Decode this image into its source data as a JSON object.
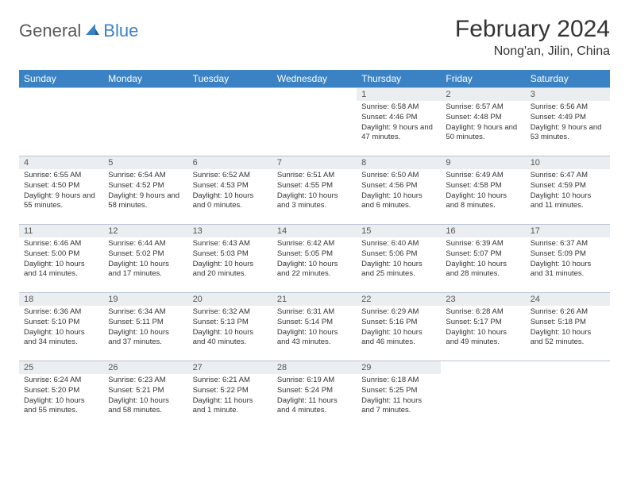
{
  "logo": {
    "text_general": "General",
    "text_blue": "Blue",
    "icon_color": "#3b82c4"
  },
  "title": "February 2024",
  "location": "Nong'an, Jilin, China",
  "colors": {
    "header_bg": "#3b82c4",
    "header_text": "#ffffff",
    "daynum_bg": "#ebeef1",
    "border": "#b8c4d0",
    "text": "#333333"
  },
  "day_headers": [
    "Sunday",
    "Monday",
    "Tuesday",
    "Wednesday",
    "Thursday",
    "Friday",
    "Saturday"
  ],
  "weeks": [
    [
      {
        "n": "",
        "sr": "",
        "ss": "",
        "dl": ""
      },
      {
        "n": "",
        "sr": "",
        "ss": "",
        "dl": ""
      },
      {
        "n": "",
        "sr": "",
        "ss": "",
        "dl": ""
      },
      {
        "n": "",
        "sr": "",
        "ss": "",
        "dl": ""
      },
      {
        "n": "1",
        "sr": "Sunrise: 6:58 AM",
        "ss": "Sunset: 4:46 PM",
        "dl": "Daylight: 9 hours and 47 minutes."
      },
      {
        "n": "2",
        "sr": "Sunrise: 6:57 AM",
        "ss": "Sunset: 4:48 PM",
        "dl": "Daylight: 9 hours and 50 minutes."
      },
      {
        "n": "3",
        "sr": "Sunrise: 6:56 AM",
        "ss": "Sunset: 4:49 PM",
        "dl": "Daylight: 9 hours and 53 minutes."
      }
    ],
    [
      {
        "n": "4",
        "sr": "Sunrise: 6:55 AM",
        "ss": "Sunset: 4:50 PM",
        "dl": "Daylight: 9 hours and 55 minutes."
      },
      {
        "n": "5",
        "sr": "Sunrise: 6:54 AM",
        "ss": "Sunset: 4:52 PM",
        "dl": "Daylight: 9 hours and 58 minutes."
      },
      {
        "n": "6",
        "sr": "Sunrise: 6:52 AM",
        "ss": "Sunset: 4:53 PM",
        "dl": "Daylight: 10 hours and 0 minutes."
      },
      {
        "n": "7",
        "sr": "Sunrise: 6:51 AM",
        "ss": "Sunset: 4:55 PM",
        "dl": "Daylight: 10 hours and 3 minutes."
      },
      {
        "n": "8",
        "sr": "Sunrise: 6:50 AM",
        "ss": "Sunset: 4:56 PM",
        "dl": "Daylight: 10 hours and 6 minutes."
      },
      {
        "n": "9",
        "sr": "Sunrise: 6:49 AM",
        "ss": "Sunset: 4:58 PM",
        "dl": "Daylight: 10 hours and 8 minutes."
      },
      {
        "n": "10",
        "sr": "Sunrise: 6:47 AM",
        "ss": "Sunset: 4:59 PM",
        "dl": "Daylight: 10 hours and 11 minutes."
      }
    ],
    [
      {
        "n": "11",
        "sr": "Sunrise: 6:46 AM",
        "ss": "Sunset: 5:00 PM",
        "dl": "Daylight: 10 hours and 14 minutes."
      },
      {
        "n": "12",
        "sr": "Sunrise: 6:44 AM",
        "ss": "Sunset: 5:02 PM",
        "dl": "Daylight: 10 hours and 17 minutes."
      },
      {
        "n": "13",
        "sr": "Sunrise: 6:43 AM",
        "ss": "Sunset: 5:03 PM",
        "dl": "Daylight: 10 hours and 20 minutes."
      },
      {
        "n": "14",
        "sr": "Sunrise: 6:42 AM",
        "ss": "Sunset: 5:05 PM",
        "dl": "Daylight: 10 hours and 22 minutes."
      },
      {
        "n": "15",
        "sr": "Sunrise: 6:40 AM",
        "ss": "Sunset: 5:06 PM",
        "dl": "Daylight: 10 hours and 25 minutes."
      },
      {
        "n": "16",
        "sr": "Sunrise: 6:39 AM",
        "ss": "Sunset: 5:07 PM",
        "dl": "Daylight: 10 hours and 28 minutes."
      },
      {
        "n": "17",
        "sr": "Sunrise: 6:37 AM",
        "ss": "Sunset: 5:09 PM",
        "dl": "Daylight: 10 hours and 31 minutes."
      }
    ],
    [
      {
        "n": "18",
        "sr": "Sunrise: 6:36 AM",
        "ss": "Sunset: 5:10 PM",
        "dl": "Daylight: 10 hours and 34 minutes."
      },
      {
        "n": "19",
        "sr": "Sunrise: 6:34 AM",
        "ss": "Sunset: 5:11 PM",
        "dl": "Daylight: 10 hours and 37 minutes."
      },
      {
        "n": "20",
        "sr": "Sunrise: 6:32 AM",
        "ss": "Sunset: 5:13 PM",
        "dl": "Daylight: 10 hours and 40 minutes."
      },
      {
        "n": "21",
        "sr": "Sunrise: 6:31 AM",
        "ss": "Sunset: 5:14 PM",
        "dl": "Daylight: 10 hours and 43 minutes."
      },
      {
        "n": "22",
        "sr": "Sunrise: 6:29 AM",
        "ss": "Sunset: 5:16 PM",
        "dl": "Daylight: 10 hours and 46 minutes."
      },
      {
        "n": "23",
        "sr": "Sunrise: 6:28 AM",
        "ss": "Sunset: 5:17 PM",
        "dl": "Daylight: 10 hours and 49 minutes."
      },
      {
        "n": "24",
        "sr": "Sunrise: 6:26 AM",
        "ss": "Sunset: 5:18 PM",
        "dl": "Daylight: 10 hours and 52 minutes."
      }
    ],
    [
      {
        "n": "25",
        "sr": "Sunrise: 6:24 AM",
        "ss": "Sunset: 5:20 PM",
        "dl": "Daylight: 10 hours and 55 minutes."
      },
      {
        "n": "26",
        "sr": "Sunrise: 6:23 AM",
        "ss": "Sunset: 5:21 PM",
        "dl": "Daylight: 10 hours and 58 minutes."
      },
      {
        "n": "27",
        "sr": "Sunrise: 6:21 AM",
        "ss": "Sunset: 5:22 PM",
        "dl": "Daylight: 11 hours and 1 minute."
      },
      {
        "n": "28",
        "sr": "Sunrise: 6:19 AM",
        "ss": "Sunset: 5:24 PM",
        "dl": "Daylight: 11 hours and 4 minutes."
      },
      {
        "n": "29",
        "sr": "Sunrise: 6:18 AM",
        "ss": "Sunset: 5:25 PM",
        "dl": "Daylight: 11 hours and 7 minutes."
      },
      {
        "n": "",
        "sr": "",
        "ss": "",
        "dl": ""
      },
      {
        "n": "",
        "sr": "",
        "ss": "",
        "dl": ""
      }
    ]
  ]
}
